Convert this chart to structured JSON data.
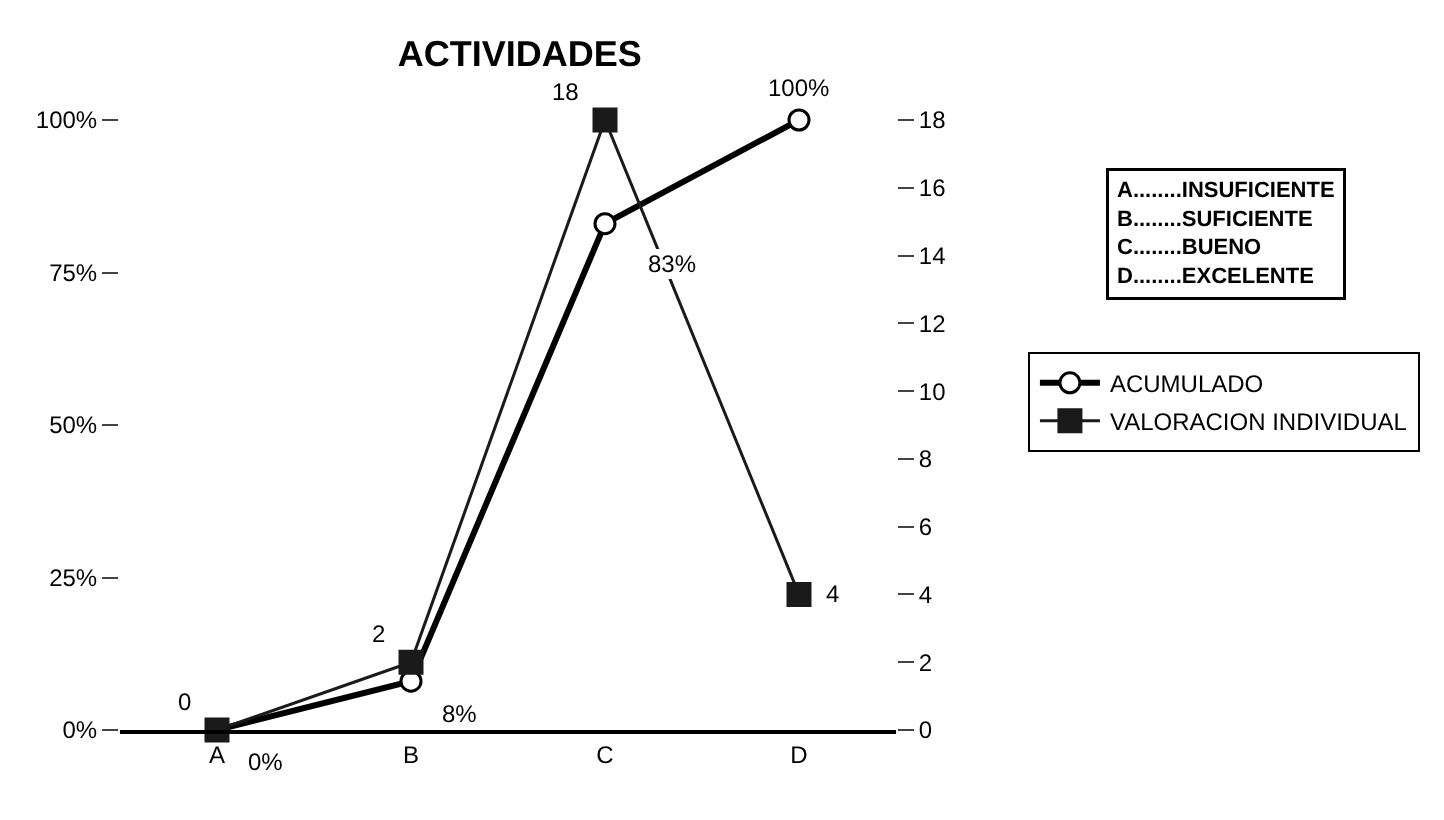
{
  "chart_data": {
    "type": "line",
    "title": "ACTIVIDADES",
    "categories": [
      "A",
      "B",
      "C",
      "D"
    ],
    "series": [
      {
        "name": "ACUMULADO",
        "color": "#000000",
        "values": [
          0,
          8,
          83,
          100
        ],
        "marker": "circle",
        "value_labels": [
          "0%",
          "8%",
          "83%",
          "100%"
        ]
      },
      {
        "name": "VALORACION INDIVIDUAL",
        "color": "#1a1a1a",
        "values": [
          0,
          2,
          18,
          4
        ],
        "marker": "square",
        "axis": "y2",
        "value_labels": [
          "0",
          "2",
          "18",
          "4"
        ]
      }
    ],
    "ylim": [
      0,
      100
    ],
    "yticks": [
      {
        "value": 0,
        "label": "0%"
      },
      {
        "value": 25,
        "label": "25%"
      },
      {
        "value": 50,
        "label": "50%"
      },
      {
        "value": 75,
        "label": "75%"
      },
      {
        "value": 100,
        "label": "100%"
      }
    ],
    "y2lim": [
      0,
      18
    ],
    "y2ticks": [
      0,
      2,
      4,
      6,
      8,
      10,
      12,
      14,
      16,
      18
    ],
    "annotations": [
      "A........INSUFICIENTE\nB........SUFICIENTE\nC........BUENO\nD........EXCELENTE"
    ],
    "legend": "right",
    "line_style": "solid"
  }
}
